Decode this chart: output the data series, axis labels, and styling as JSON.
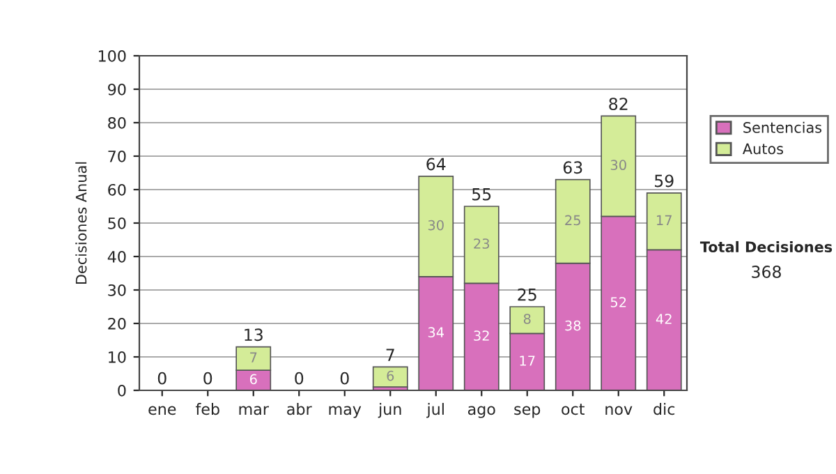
{
  "chart_data": {
    "type": "bar",
    "stacked": true,
    "ylabel": "Decisiones Anual",
    "categories": [
      "ene",
      "feb",
      "mar",
      "abr",
      "may",
      "jun",
      "jul",
      "ago",
      "sep",
      "oct",
      "nov",
      "dic"
    ],
    "series": [
      {
        "name": "Sentencias",
        "color": "#d870bc",
        "values": [
          0,
          0,
          6,
          0,
          0,
          1,
          34,
          32,
          17,
          38,
          52,
          42
        ],
        "value_labels": [
          null,
          null,
          "6",
          null,
          null,
          null,
          "34",
          "32",
          "17",
          "38",
          "52",
          "42"
        ]
      },
      {
        "name": "Autos",
        "color": "#d4ec98",
        "values": [
          0,
          0,
          7,
          0,
          0,
          6,
          30,
          23,
          8,
          25,
          30,
          17
        ],
        "value_labels": [
          null,
          null,
          "7",
          null,
          null,
          "6",
          "30",
          "23",
          "8",
          "25",
          "30",
          "17"
        ]
      }
    ],
    "totals": [
      "0",
      "0",
      "13",
      "0",
      "0",
      "7",
      "64",
      "55",
      "25",
      "63",
      "82",
      "59"
    ],
    "ylim": [
      0,
      100
    ],
    "yticks": [
      0,
      10,
      20,
      30,
      40,
      50,
      60,
      70,
      80,
      90,
      100
    ],
    "grid": "y",
    "legend": "right",
    "annotations": [
      "Total Decisiones",
      "368"
    ]
  }
}
